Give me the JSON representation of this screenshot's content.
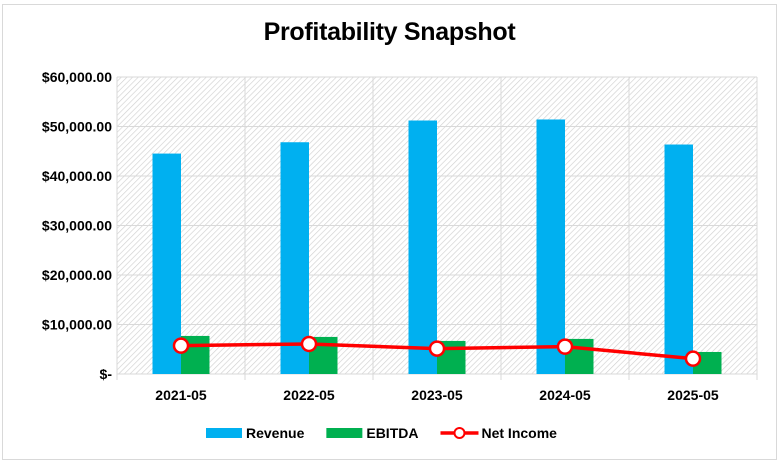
{
  "chart_data": {
    "type": "bar",
    "title": "Profitability Snapshot",
    "xlabel": "",
    "ylabel": "",
    "categories": [
      "2021-05",
      "2022-05",
      "2023-05",
      "2024-05",
      "2025-05"
    ],
    "ylim": [
      0,
      60000
    ],
    "yticks": [
      0,
      10000,
      20000,
      30000,
      40000,
      50000,
      60000
    ],
    "ytick_labels": [
      "$-",
      "$10,000.00",
      "$20,000.00",
      "$30,000.00",
      "$40,000.00",
      "$50,000.00",
      "$60,000.00"
    ],
    "grid": true,
    "plot_background": "diagonal-hatch",
    "legend_position": "bottom",
    "series": [
      {
        "name": "Revenue",
        "type": "bar",
        "color": "#00B0F0",
        "values": [
          44530,
          46820,
          51210,
          51420,
          46360
        ]
      },
      {
        "name": "EBITDA",
        "type": "bar",
        "color": "#00B050",
        "values": [
          7690,
          7490,
          6680,
          7090,
          4450
        ]
      },
      {
        "name": "Net Income",
        "type": "line",
        "color": "#FF0000",
        "marker": "circle",
        "marker_fill": "#FFFFFF",
        "values": [
          5730,
          6070,
          5130,
          5530,
          3100
        ]
      }
    ]
  }
}
